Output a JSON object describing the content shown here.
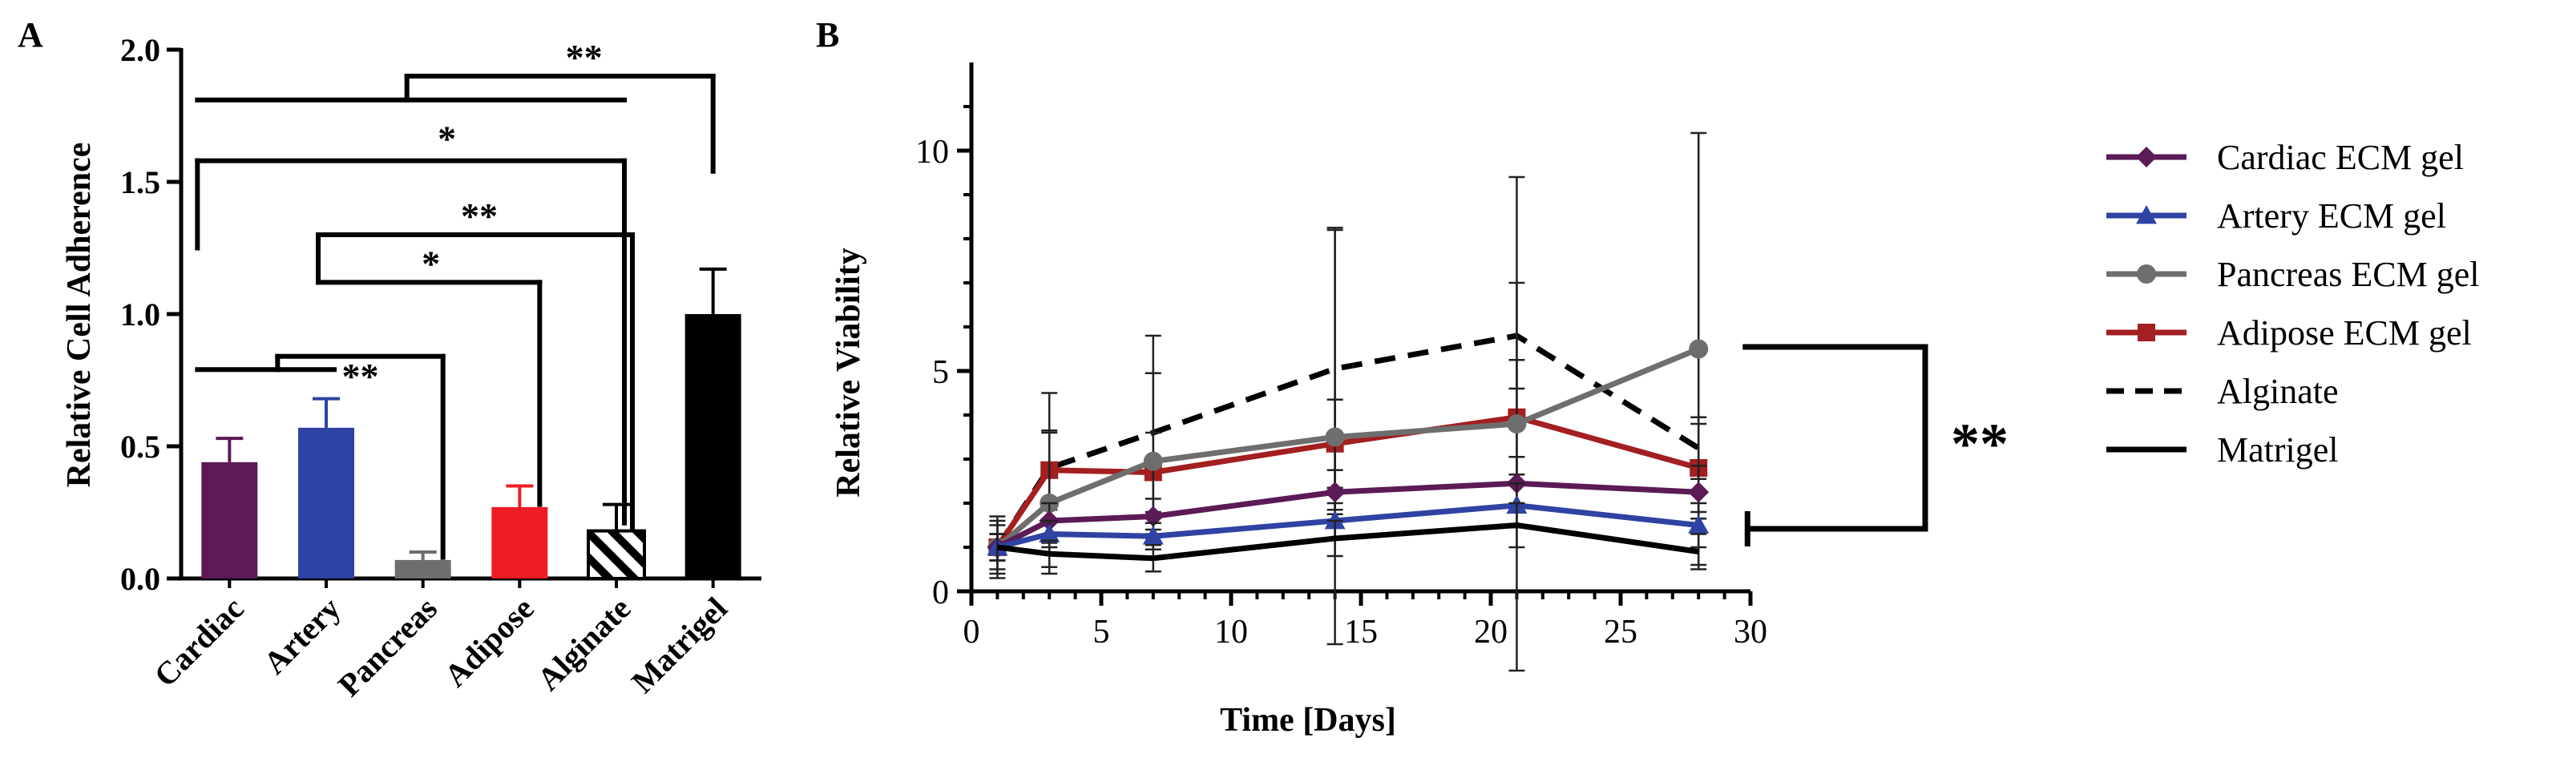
{
  "chart_data": [
    {
      "panel": "A",
      "type": "bar",
      "title": "",
      "xlabel": "",
      "ylabel": "Relative Cell Adherence",
      "ylim": [
        0,
        2.0
      ],
      "yticks": [
        "0.0",
        "0.5",
        "1.0",
        "1.5",
        "2.0"
      ],
      "categories": [
        "Cardiac",
        "Artery",
        "Pancreas",
        "Adipose",
        "Alginate",
        "Matrigel"
      ],
      "values": [
        0.44,
        0.57,
        0.07,
        0.27,
        0.18,
        1.0
      ],
      "errors": [
        0.09,
        0.11,
        0.03,
        0.08,
        0.1,
        0.17
      ],
      "colors": [
        "#5c1a56",
        "#2e43a3",
        "#6e6e6e",
        "#ee1c25",
        "hatch",
        "#000000"
      ],
      "significance": [
        {
          "label": "**",
          "from": [
            "Cardiac",
            "Artery"
          ],
          "to": "Pancreas"
        },
        {
          "label": "*",
          "from": [
            "Artery"
          ],
          "to": "Adipose"
        },
        {
          "label": "**",
          "from": [
            "Artery"
          ],
          "to": "Alginate"
        },
        {
          "label": "*",
          "from": [
            "Cardiac"
          ],
          "to": "Alginate"
        },
        {
          "label": "",
          "from": [
            "Cardiac"
          ],
          "to": "Alginate"
        },
        {
          "label": "**",
          "from": [
            "Alginate"
          ],
          "to": "Matrigel"
        }
      ]
    },
    {
      "panel": "B",
      "type": "line",
      "title": "",
      "xlabel": "Time [Days]",
      "ylabel": "Relative Viability",
      "xlim": [
        0,
        30
      ],
      "ylim": [
        0,
        12
      ],
      "xticks": [
        "0",
        "5",
        "10",
        "15",
        "20",
        "25",
        "30"
      ],
      "yticks": [
        "0",
        "5",
        "10"
      ],
      "x": [
        1,
        3,
        7,
        14,
        21,
        28
      ],
      "series": [
        {
          "name": "Cardiac ECM gel",
          "color": "#5c1a56",
          "marker": "diamond",
          "style": "solid",
          "values": [
            1.0,
            1.6,
            1.7,
            2.25,
            2.45,
            2.25
          ],
          "errors": [
            0.3,
            0.4,
            0.4,
            0.5,
            0.6,
            0.6
          ]
        },
        {
          "name": "Artery ECM gel",
          "color": "#2e43a3",
          "marker": "triangle",
          "style": "solid",
          "values": [
            1.0,
            1.3,
            1.25,
            1.6,
            1.95,
            1.5
          ],
          "errors": [
            0.3,
            0.3,
            0.3,
            0.4,
            0.5,
            0.5
          ]
        },
        {
          "name": "Pancreas ECM gel",
          "color": "#6e6e6e",
          "marker": "circle",
          "style": "solid",
          "values": [
            1.0,
            2.0,
            2.95,
            3.5,
            3.8,
            5.5
          ],
          "errors": [
            0.6,
            1.6,
            2.0,
            4.7,
            5.6,
            4.9
          ]
        },
        {
          "name": "Adipose ECM gel",
          "color": "#a31f20",
          "marker": "square",
          "style": "solid",
          "values": [
            1.0,
            2.75,
            2.7,
            3.35,
            3.95,
            2.8
          ],
          "errors": [
            0.5,
            0.9,
            0.9,
            1.0,
            1.3,
            1.0
          ]
        },
        {
          "name": "Alginate",
          "color": "#000000",
          "marker": "none",
          "style": "dashed",
          "values": [
            1.0,
            2.8,
            3.6,
            5.05,
            5.8,
            3.25
          ],
          "errors": [
            0.7,
            1.7,
            2.2,
            3.2,
            1.2,
            0.7
          ]
        },
        {
          "name": "Matrigel",
          "color": "#000000",
          "marker": "none",
          "style": "solid",
          "values": [
            1.0,
            0.85,
            0.75,
            1.2,
            1.5,
            0.9
          ],
          "errors": [
            0.3,
            0.3,
            0.3,
            0.4,
            0.5,
            0.4
          ]
        }
      ],
      "significance": [
        {
          "label": "**",
          "between": [
            "Pancreas ECM gel",
            "Matrigel"
          ]
        }
      ],
      "legend_position": "right"
    }
  ]
}
